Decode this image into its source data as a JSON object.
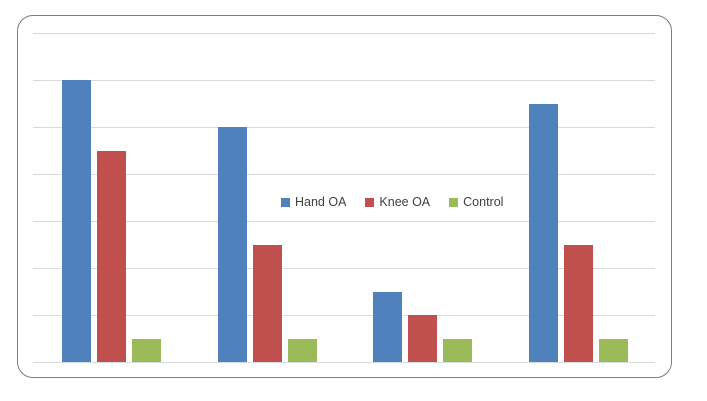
{
  "chart_data": {
    "type": "bar",
    "title": "",
    "categories": [
      "",
      "",
      "",
      ""
    ],
    "x_axis": {
      "tick_labels_visible": false
    },
    "y_axis": {
      "tick_labels_visible": false,
      "min": 0,
      "max": 7,
      "gridline_interval": 1
    },
    "series": [
      {
        "name": "Hand OA",
        "color": "#4F81BD",
        "values": [
          6,
          5,
          1.5,
          5.5
        ]
      },
      {
        "name": "Knee OA",
        "color": "#C0504D",
        "values": [
          4.5,
          2.5,
          1,
          2.5
        ]
      },
      {
        "name": "Control",
        "color": "#9BBB59",
        "values": [
          0.5,
          0.5,
          0.5,
          0.5
        ]
      }
    ],
    "legend": {
      "position": "center-overlay",
      "entries": [
        "Hand OA",
        "Knee OA",
        "Control"
      ]
    },
    "grid": "horizontal gridlines only, 8 lines including baseline",
    "note": "No axis tick labels, no category labels and no title are visible; values are estimated in gridline units (1 unit = one gridline spacing)."
  },
  "colors": {
    "hand_oa": "#4F81BD",
    "knee_oa": "#C0504D",
    "control": "#9BBB59",
    "gridline": "#D6DBE0",
    "frame_border": "#7D7D7D",
    "background": "#FFFFFF",
    "legend_text": "#3F3F3F"
  }
}
